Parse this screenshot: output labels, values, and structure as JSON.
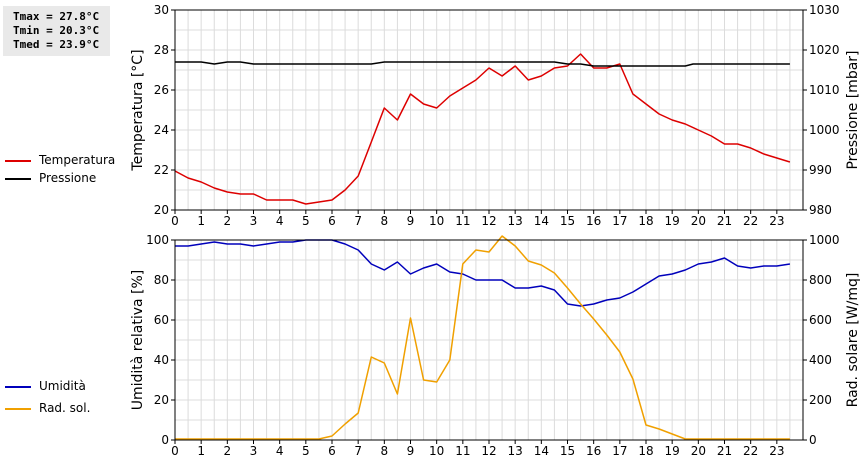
{
  "stats": {
    "tmax": "Tmax = 27.8°C",
    "tmin": "Tmin = 20.3°C",
    "tmed": "Tmed = 23.9°C"
  },
  "legend_top": [
    {
      "label": "Temperatura",
      "color": "#dd0000"
    },
    {
      "label": "Pressione",
      "color": "#000000"
    }
  ],
  "legend_bottom": [
    {
      "label": "Umidità",
      "color": "#0000bb"
    },
    {
      "label": "Rad. sol.",
      "color": "#f0a000"
    }
  ],
  "chart_data": [
    {
      "type": "line",
      "xlim": [
        0,
        24
      ],
      "x_ticks": [
        "0",
        "1",
        "2",
        "3",
        "4",
        "5",
        "6",
        "7",
        "8",
        "9",
        "10",
        "11",
        "12",
        "13",
        "14",
        "15",
        "16",
        "17",
        "18",
        "19",
        "20",
        "21",
        "22",
        "23"
      ],
      "ylabel": "Temperatura [°C]",
      "ylim": [
        20,
        30
      ],
      "y_ticks": [
        "20",
        "22",
        "24",
        "26",
        "28",
        "30"
      ],
      "y2label": "Pressione [mbar]",
      "y2lim": [
        980,
        1030
      ],
      "y2_ticks": [
        "980",
        "990",
        "1000",
        "1010",
        "1020",
        "1030"
      ],
      "grid": true,
      "series": [
        {
          "name": "Temperatura",
          "axis": "left",
          "color": "#dd0000",
          "points": [
            [
              0,
              21.95
            ],
            [
              0.5,
              21.6
            ],
            [
              1,
              21.4
            ],
            [
              1.5,
              21.1
            ],
            [
              2,
              20.9
            ],
            [
              2.5,
              20.8
            ],
            [
              3,
              20.8
            ],
            [
              3.5,
              20.5
            ],
            [
              4,
              20.5
            ],
            [
              4.5,
              20.5
            ],
            [
              5,
              20.3
            ],
            [
              5.5,
              20.4
            ],
            [
              6,
              20.5
            ],
            [
              6.5,
              21.0
            ],
            [
              7,
              21.7
            ],
            [
              7.5,
              23.4
            ],
            [
              8,
              25.1
            ],
            [
              8.5,
              24.5
            ],
            [
              9,
              25.8
            ],
            [
              9.5,
              25.3
            ],
            [
              10,
              25.1
            ],
            [
              10.5,
              25.7
            ],
            [
              11,
              26.1
            ],
            [
              11.5,
              26.5
            ],
            [
              12,
              27.1
            ],
            [
              12.5,
              26.7
            ],
            [
              13,
              27.2
            ],
            [
              13.5,
              26.5
            ],
            [
              14,
              26.7
            ],
            [
              14.5,
              27.1
            ],
            [
              15,
              27.2
            ],
            [
              15.5,
              27.8
            ],
            [
              16,
              27.1
            ],
            [
              16.5,
              27.1
            ],
            [
              17,
              27.3
            ],
            [
              17.5,
              25.8
            ],
            [
              18,
              25.3
            ],
            [
              18.5,
              24.8
            ],
            [
              19,
              24.5
            ],
            [
              19.5,
              24.3
            ],
            [
              20,
              24.0
            ],
            [
              20.5,
              23.7
            ],
            [
              21,
              23.3
            ],
            [
              21.5,
              23.3
            ],
            [
              22,
              23.1
            ],
            [
              22.5,
              22.8
            ],
            [
              23,
              22.6
            ],
            [
              23.5,
              22.4
            ]
          ]
        },
        {
          "name": "Pressione",
          "axis": "right",
          "color": "#000000",
          "points": [
            [
              0,
              1017
            ],
            [
              1,
              1017
            ],
            [
              1.5,
              1016.5
            ],
            [
              2,
              1017
            ],
            [
              2.5,
              1017
            ],
            [
              3,
              1016.5
            ],
            [
              7.5,
              1016.5
            ],
            [
              8,
              1017
            ],
            [
              14.5,
              1017
            ],
            [
              15,
              1016.5
            ],
            [
              15.5,
              1016.5
            ],
            [
              16,
              1016
            ],
            [
              19.5,
              1016
            ],
            [
              19.8,
              1016.5
            ],
            [
              23.5,
              1016.5
            ]
          ]
        }
      ]
    },
    {
      "type": "line",
      "xlim": [
        0,
        24
      ],
      "x_ticks": [
        "0",
        "1",
        "2",
        "3",
        "4",
        "5",
        "6",
        "7",
        "8",
        "9",
        "10",
        "11",
        "12",
        "13",
        "14",
        "15",
        "16",
        "17",
        "18",
        "19",
        "20",
        "21",
        "22",
        "23"
      ],
      "ylabel": "Umidità relativa [%]",
      "ylim": [
        0,
        100
      ],
      "y_ticks": [
        "0",
        "20",
        "40",
        "60",
        "80",
        "100"
      ],
      "y2label": "Rad. solare [W/mq]",
      "y2lim": [
        0,
        1000
      ],
      "y2_ticks": [
        "0",
        "200",
        "400",
        "600",
        "800",
        "1000"
      ],
      "grid": true,
      "series": [
        {
          "name": "Umidità",
          "axis": "left",
          "color": "#0000bb",
          "points": [
            [
              0,
              97
            ],
            [
              0.5,
              97
            ],
            [
              1,
              98
            ],
            [
              1.5,
              99
            ],
            [
              2,
              98
            ],
            [
              2.5,
              98
            ],
            [
              3,
              97
            ],
            [
              3.5,
              98
            ],
            [
              4,
              99
            ],
            [
              4.5,
              99
            ],
            [
              5,
              100
            ],
            [
              6,
              100
            ],
            [
              6.5,
              98
            ],
            [
              7,
              95
            ],
            [
              7.5,
              88
            ],
            [
              8,
              85
            ],
            [
              8.5,
              89
            ],
            [
              9,
              83
            ],
            [
              9.5,
              86
            ],
            [
              10,
              88
            ],
            [
              10.5,
              84
            ],
            [
              11,
              83
            ],
            [
              11.5,
              80
            ],
            [
              12.5,
              80
            ],
            [
              13,
              76
            ],
            [
              13.5,
              76
            ],
            [
              14,
              77
            ],
            [
              14.5,
              75
            ],
            [
              15,
              68
            ],
            [
              15.5,
              67
            ],
            [
              16,
              68
            ],
            [
              16.5,
              70
            ],
            [
              17,
              71
            ],
            [
              17.5,
              74
            ],
            [
              18,
              78
            ],
            [
              18.5,
              82
            ],
            [
              19,
              83
            ],
            [
              19.5,
              85
            ],
            [
              20,
              88
            ],
            [
              20.5,
              89
            ],
            [
              21,
              91
            ],
            [
              21.5,
              87
            ],
            [
              22,
              86
            ],
            [
              22.5,
              87
            ],
            [
              23,
              87
            ],
            [
              23.5,
              88
            ]
          ]
        },
        {
          "name": "Rad. sol.",
          "axis": "right",
          "color": "#f0a000",
          "points": [
            [
              0,
              5
            ],
            [
              5.5,
              5
            ],
            [
              6,
              20
            ],
            [
              6.5,
              80
            ],
            [
              7,
              135
            ],
            [
              7.5,
              415
            ],
            [
              8,
              385
            ],
            [
              8.5,
              230
            ],
            [
              9,
              610
            ],
            [
              9.5,
              300
            ],
            [
              10,
              290
            ],
            [
              10.5,
              400
            ],
            [
              11,
              880
            ],
            [
              11.5,
              950
            ],
            [
              12,
              940
            ],
            [
              12.5,
              1020
            ],
            [
              13,
              970
            ],
            [
              13.5,
              895
            ],
            [
              14,
              875
            ],
            [
              14.5,
              835
            ],
            [
              15,
              760
            ],
            [
              15.5,
              680
            ],
            [
              16,
              605
            ],
            [
              16.5,
              525
            ],
            [
              17,
              440
            ],
            [
              17.5,
              305
            ],
            [
              18,
              75
            ],
            [
              18.5,
              55
            ],
            [
              19,
              30
            ],
            [
              19.5,
              5
            ],
            [
              23.5,
              5
            ]
          ]
        }
      ]
    }
  ]
}
